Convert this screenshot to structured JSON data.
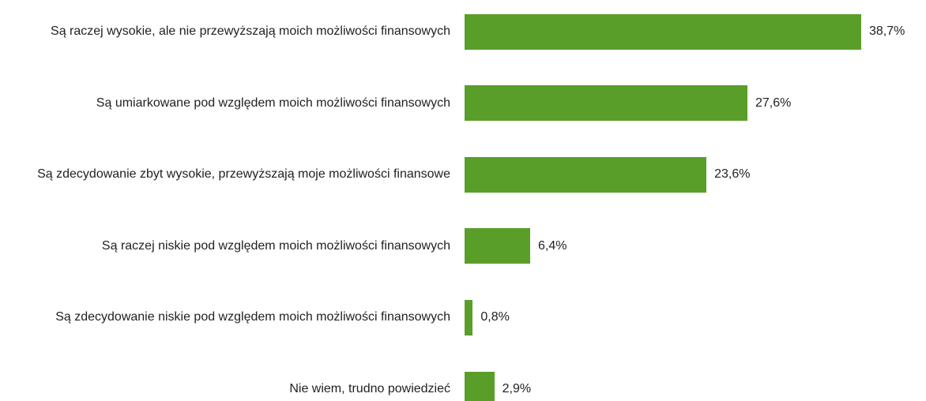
{
  "chart_data": {
    "type": "hbar",
    "categories": [
      "Są raczej wysokie, ale nie przewyższają moich możliwości finansowych",
      "Są umiarkowane pod względem moich możliwości finansowych",
      "Są zdecydowanie zbyt wysokie, przewyższają moje możliwości finansowe",
      "Są raczej niskie pod względem moich możliwości finansowych",
      "Są zdecydowanie niskie pod względem moich możliwości finansowych",
      "Nie wiem, trudno powiedzieć"
    ],
    "values": [
      38.7,
      27.6,
      23.6,
      6.4,
      0.8,
      2.9
    ],
    "value_labels": [
      "38,7%",
      "27,6%",
      "23,6%",
      "6,4%",
      "0,8%",
      "2,9%"
    ],
    "color": "#5a9e2a"
  }
}
